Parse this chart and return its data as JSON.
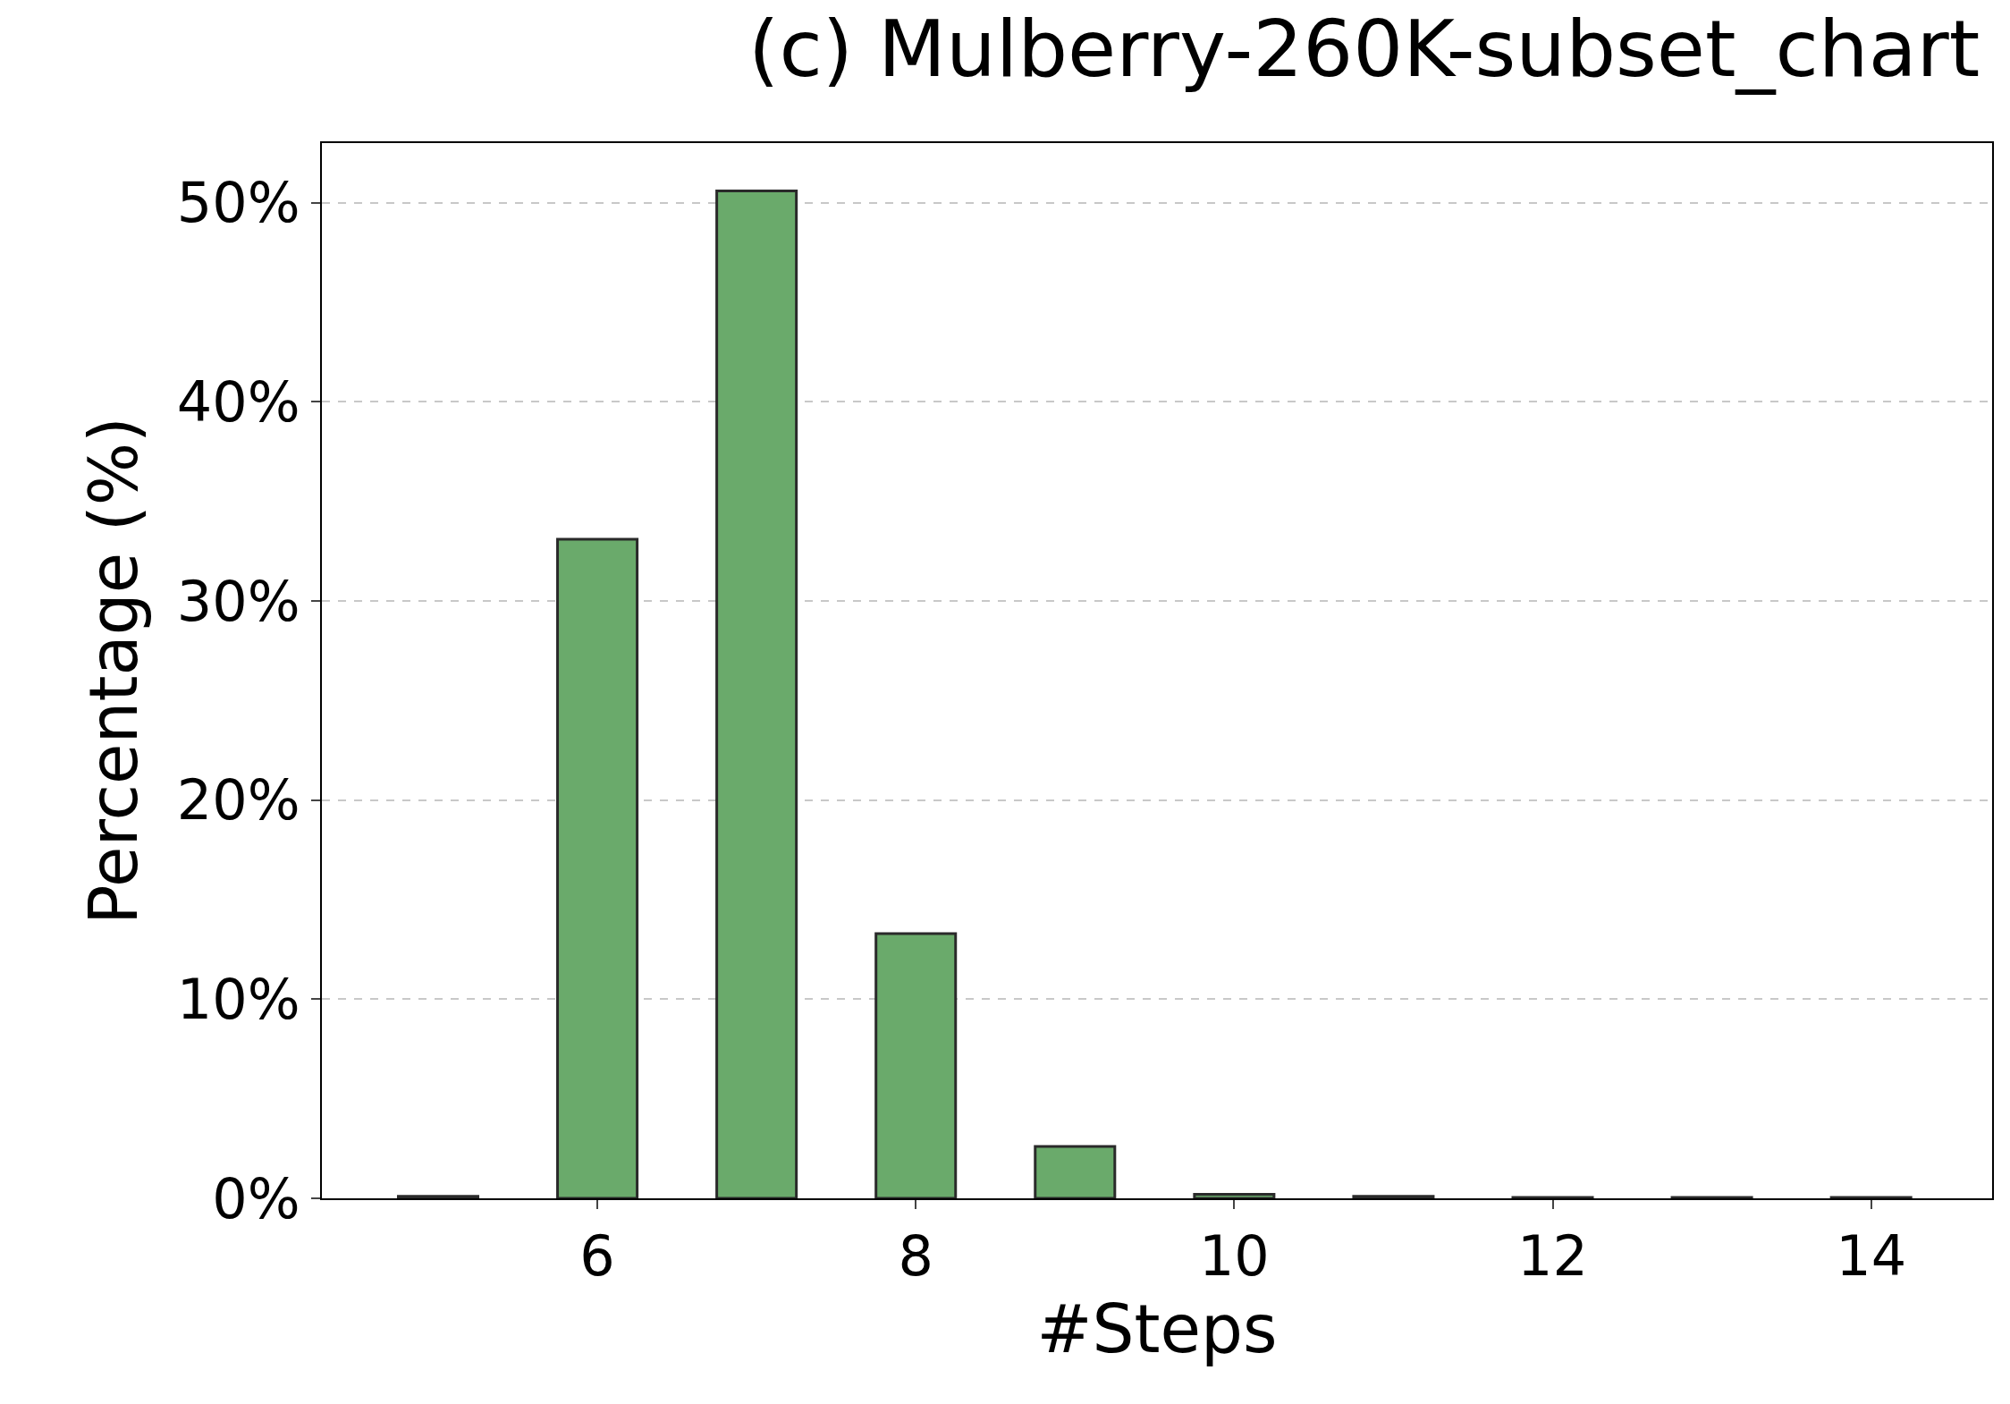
{
  "chart_data": {
    "type": "bar",
    "title": "(c) Mulberry-260K-subset_chart",
    "xlabel": "#Steps",
    "ylabel": "Percentage (%)",
    "x": [
      5,
      6,
      7,
      8,
      9,
      10,
      11,
      12,
      13,
      14
    ],
    "values": [
      0.1,
      33.1,
      50.6,
      13.3,
      2.6,
      0.2,
      0.1,
      0.05,
      0.05,
      0.05
    ],
    "color": "#6aaa6b",
    "xlim": [
      4.27,
      14.76
    ],
    "xticks": [
      6,
      8,
      10,
      12,
      14
    ],
    "ylim": [
      0,
      53
    ],
    "yticks": [
      {
        "value": 0,
        "label": "0%"
      },
      {
        "value": 10,
        "label": "10%"
      },
      {
        "value": 20,
        "label": "20%"
      },
      {
        "value": 30,
        "label": "30%"
      },
      {
        "value": 40,
        "label": "40%"
      },
      {
        "value": 50,
        "label": "50%"
      }
    ],
    "grid": "y"
  }
}
